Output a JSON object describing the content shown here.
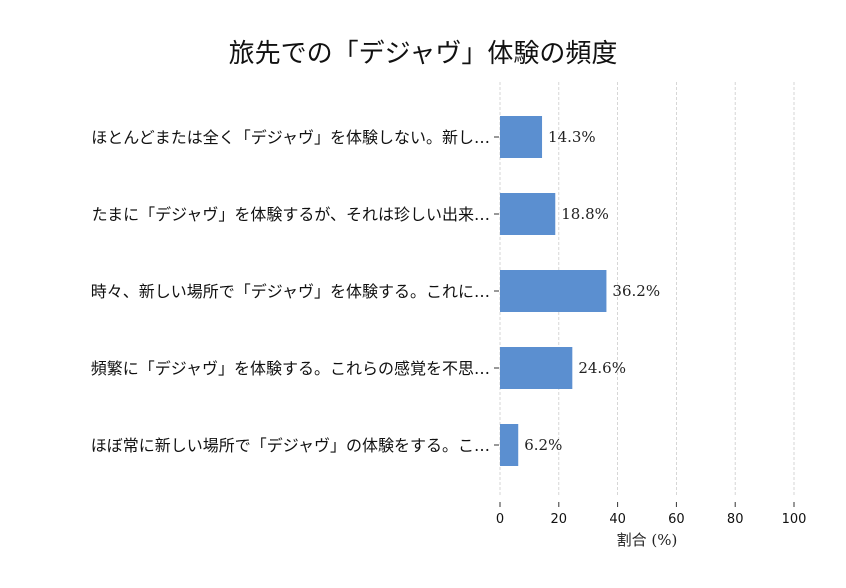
{
  "chart_data": {
    "type": "bar",
    "orientation": "horizontal",
    "title": "旅先での「デジャヴ」体験の頻度",
    "xlabel": "割合 (%)",
    "ylabel": "",
    "xlim": [
      0,
      100
    ],
    "xticks": [
      "0",
      "20",
      "40",
      "60",
      "80",
      "100"
    ],
    "grid": "x-dashed",
    "bar_color": "#5b8fd0",
    "categories": [
      "ほとんどまたは全く「デジャヴ」を体験しない。新し…",
      "たまに「デジャヴ」を体験するが、それは珍しい出来…",
      "時々、新しい場所で「デジャヴ」を体験する。これに…",
      "頻繁に「デジャヴ」を体験する。これらの感覚を不思…",
      "ほぼ常に新しい場所で「デジャヴ」の体験をする。こ…"
    ],
    "values": [
      14.3,
      18.8,
      36.2,
      24.6,
      6.2
    ],
    "data_labels": [
      "14.3%",
      "18.8%",
      "36.2%",
      "24.6%",
      "6.2%"
    ]
  }
}
